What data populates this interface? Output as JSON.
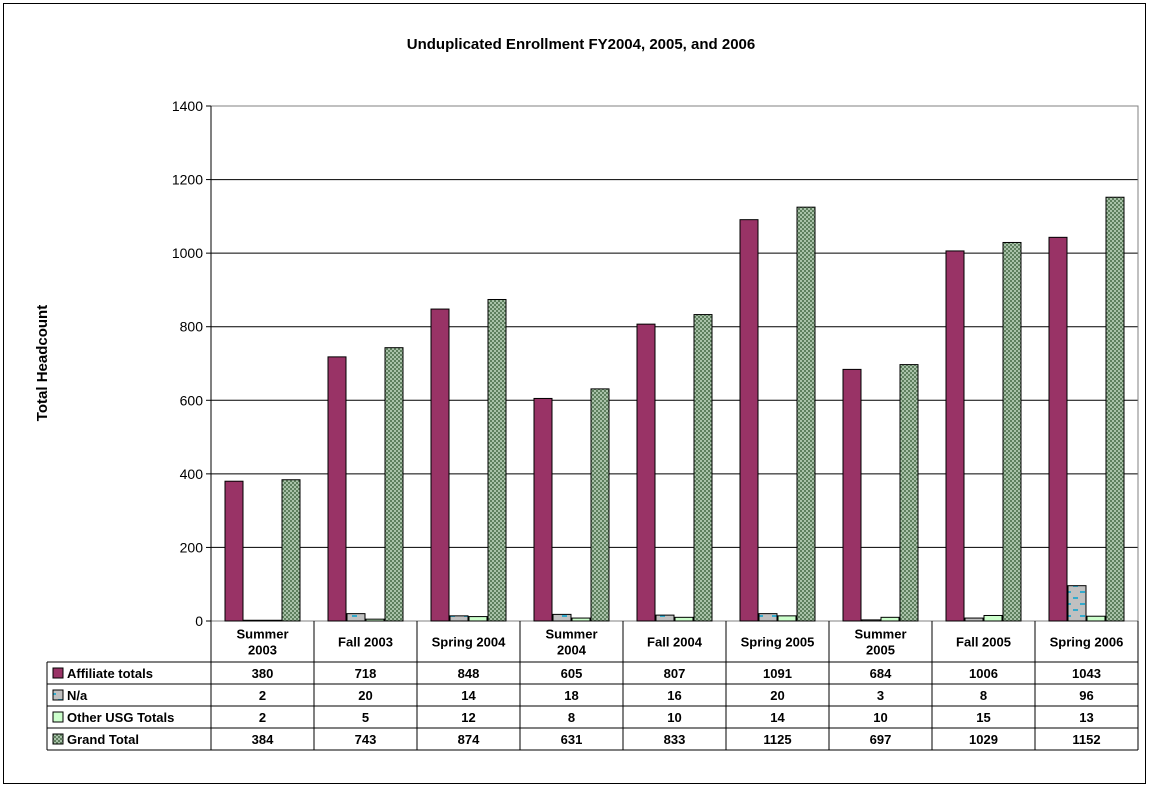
{
  "chart_data": {
    "type": "bar",
    "title": "Unduplicated Enrollment FY2004, 2005, and 2006",
    "xlabel": "",
    "ylabel": "Total Headcount",
    "ylim": [
      0,
      1400
    ],
    "yticks": [
      0,
      200,
      400,
      600,
      800,
      1000,
      1200,
      1400
    ],
    "grid": true,
    "legend": "data-table",
    "categories": [
      [
        "Summer",
        "2003"
      ],
      [
        "Fall 2003"
      ],
      [
        "Spring 2004"
      ],
      [
        "Summer",
        "2004"
      ],
      [
        "Fall 2004"
      ],
      [
        "Spring 2005"
      ],
      [
        "Summer",
        "2005"
      ],
      [
        "Fall 2005"
      ],
      [
        "Spring 2006"
      ]
    ],
    "series": [
      {
        "name": "Affiliate totals",
        "color": "#993366",
        "pattern": "solid",
        "values": [
          380,
          718,
          848,
          605,
          807,
          1091,
          684,
          1006,
          1043
        ]
      },
      {
        "name": "N/a",
        "color": "#c0c0c0",
        "pattern": "dash",
        "values": [
          2,
          20,
          14,
          18,
          16,
          20,
          3,
          8,
          96
        ]
      },
      {
        "name": "Other USG Totals",
        "color": "#ccffcc",
        "pattern": "solid",
        "values": [
          2,
          5,
          12,
          8,
          10,
          14,
          10,
          15,
          13
        ]
      },
      {
        "name": "Grand Total",
        "color": "#6b8e6b",
        "pattern": "checker",
        "values": [
          384,
          743,
          874,
          631,
          833,
          1125,
          697,
          1029,
          1152
        ]
      }
    ]
  }
}
